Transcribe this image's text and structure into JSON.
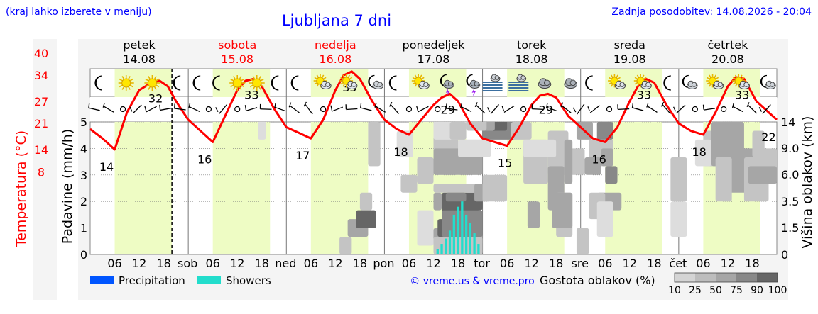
{
  "header": {
    "location_hint": "(kraj lahko izberete v meniju)",
    "title": "Ljubljana 7 dni",
    "last_update": "Zadnja posodobitev: 14.08.2026 - 20:04"
  },
  "days": [
    {
      "name": "petek",
      "date": "14.08",
      "weekend": false,
      "abbr": ""
    },
    {
      "name": "sobota",
      "date": "15.08",
      "weekend": true,
      "abbr": "sob"
    },
    {
      "name": "nedelja",
      "date": "16.08",
      "weekend": true,
      "abbr": "ned"
    },
    {
      "name": "ponedeljek",
      "date": "17.08",
      "weekend": false,
      "abbr": "pon"
    },
    {
      "name": "torek",
      "date": "18.08",
      "weekend": false,
      "abbr": "tor"
    },
    {
      "name": "sreda",
      "date": "19.08",
      "weekend": false,
      "abbr": "sre"
    },
    {
      "name": "četrtek",
      "date": "20.08",
      "weekend": false,
      "abbr": "čet"
    }
  ],
  "weather_icons": [
    [
      "moon",
      "sun",
      "sun",
      "moon"
    ],
    [
      "moon",
      "moon",
      "sun",
      "sun",
      "moon"
    ],
    [
      "moon",
      "sun-cloud",
      "sun-cloud",
      "moon-cloud"
    ],
    [
      "moon",
      "sun-cloud",
      "thunder",
      "thunder"
    ],
    [
      "fog",
      "fog",
      "cloud",
      "cloud"
    ],
    [
      "moon",
      "sun-cloud",
      "sun-cloud",
      "moon"
    ],
    [
      "moon-cloud",
      "sun-cloud",
      "sun-cloud",
      "moon-cloud"
    ]
  ],
  "icon_names": {
    "moon": "moon-icon",
    "sun": "sun-icon",
    "sun-cloud": "sun-cloud-icon",
    "moon-cloud": "moon-cloud-icon",
    "thunder": "thunderstorm-icon",
    "fog": "fog-icon",
    "cloud": "cloud-icon"
  },
  "chart_data": {
    "type": "line",
    "x_start": "14.08 00:00",
    "hour_ticks": [
      "06",
      "12",
      "18"
    ],
    "temperature": {
      "label": "Temperatura (°C)",
      "ticks": [
        8,
        14,
        21,
        27,
        34,
        40
      ],
      "color": "#ff0000",
      "points": [
        [
          0,
          19.5
        ],
        [
          3,
          17
        ],
        [
          6,
          14
        ],
        [
          9,
          24
        ],
        [
          12,
          30
        ],
        [
          15,
          32
        ],
        [
          17,
          32.5
        ],
        [
          19,
          31
        ],
        [
          21,
          27
        ],
        [
          24,
          22
        ],
        [
          27,
          19
        ],
        [
          30,
          16
        ],
        [
          33,
          23
        ],
        [
          36,
          30
        ],
        [
          38,
          32.5
        ],
        [
          40,
          33
        ],
        [
          42,
          31
        ],
        [
          45,
          25
        ],
        [
          48,
          20
        ],
        [
          51,
          18.5
        ],
        [
          54,
          17
        ],
        [
          57,
          22
        ],
        [
          60,
          30
        ],
        [
          62,
          34
        ],
        [
          64,
          35
        ],
        [
          66,
          33
        ],
        [
          69,
          27
        ],
        [
          72,
          22
        ],
        [
          75,
          19.5
        ],
        [
          78,
          18
        ],
        [
          81,
          22
        ],
        [
          84,
          26
        ],
        [
          86,
          28
        ],
        [
          88,
          29
        ],
        [
          90,
          27
        ],
        [
          93,
          21
        ],
        [
          96,
          17
        ],
        [
          99,
          16
        ],
        [
          102,
          15
        ],
        [
          105,
          20
        ],
        [
          108,
          26
        ],
        [
          110,
          28.5
        ],
        [
          112,
          29
        ],
        [
          114,
          28
        ],
        [
          117,
          23
        ],
        [
          120,
          20
        ],
        [
          123,
          17
        ],
        [
          126,
          16
        ],
        [
          129,
          20
        ],
        [
          132,
          27
        ],
        [
          134,
          31
        ],
        [
          136,
          33
        ],
        [
          138,
          32
        ],
        [
          141,
          26
        ],
        [
          144,
          21
        ],
        [
          147,
          19
        ],
        [
          150,
          18
        ],
        [
          153,
          24
        ],
        [
          156,
          31
        ],
        [
          158,
          33.5
        ],
        [
          160,
          33
        ],
        [
          163,
          27
        ],
        [
          166,
          24
        ],
        [
          168,
          22
        ]
      ],
      "labels": [
        {
          "h": 4,
          "v": 14,
          "text": "14"
        },
        {
          "h": 16,
          "v": 32,
          "text": "32"
        },
        {
          "h": 28,
          "v": 16,
          "text": "16"
        },
        {
          "h": 39.5,
          "v": 33,
          "text": "33"
        },
        {
          "h": 52,
          "v": 17,
          "text": "17"
        },
        {
          "h": 63.5,
          "v": 35,
          "text": "35"
        },
        {
          "h": 76,
          "v": 18,
          "text": "18"
        },
        {
          "h": 87.5,
          "v": 29,
          "text": "29"
        },
        {
          "h": 101.5,
          "v": 15,
          "text": "15"
        },
        {
          "h": 111.5,
          "v": 29,
          "text": "29"
        },
        {
          "h": 124.5,
          "v": 16,
          "text": "16"
        },
        {
          "h": 135.5,
          "v": 33,
          "text": "33"
        },
        {
          "h": 149,
          "v": 18,
          "text": "18"
        },
        {
          "h": 159.5,
          "v": 33,
          "text": "33"
        },
        {
          "h": 166,
          "v": 22,
          "text": "22"
        }
      ]
    },
    "precipitation": {
      "label": "Padavine (mm/h)",
      "ticks": [
        0,
        1,
        2,
        3,
        4,
        5
      ],
      "ylim": [
        0,
        5
      ],
      "showers": [
        [
          85,
          0.2
        ],
        [
          86,
          0.4
        ],
        [
          87,
          0.6
        ],
        [
          88,
          0.9
        ],
        [
          89,
          1.5
        ],
        [
          90,
          1.8
        ],
        [
          91,
          2.0
        ],
        [
          92,
          1.5
        ],
        [
          93,
          1.2
        ],
        [
          94,
          0.8
        ],
        [
          95,
          0.4
        ]
      ]
    },
    "cloud_height": {
      "label": "Višina oblakov (km)",
      "ticks": [
        "0",
        "1.5",
        "3.5",
        "6.0",
        "9.0",
        "14"
      ]
    },
    "cloud_cells": [
      [
        63,
        68,
        2,
        3,
        50
      ],
      [
        65,
        70,
        3,
        4,
        90
      ],
      [
        61,
        64,
        0,
        1,
        25
      ],
      [
        84,
        96,
        1,
        2,
        50
      ],
      [
        85,
        95,
        2,
        3,
        90
      ],
      [
        84,
        96,
        0,
        1,
        25
      ],
      [
        86,
        95,
        3,
        5,
        90
      ],
      [
        86,
        96,
        2,
        4,
        75
      ],
      [
        84,
        86,
        5,
        6,
        50
      ],
      [
        86,
        96,
        5,
        6,
        90
      ],
      [
        84,
        96,
        7,
        7,
        25
      ],
      [
        87,
        92,
        6,
        6,
        75
      ],
      [
        94,
        98,
        6,
        7,
        50
      ],
      [
        76,
        80,
        7,
        8,
        25
      ],
      [
        80,
        84,
        8,
        10,
        25
      ],
      [
        84,
        90,
        9,
        13,
        25
      ],
      [
        90,
        96,
        9,
        12,
        25
      ],
      [
        80,
        84,
        1,
        4,
        10
      ],
      [
        84,
        96,
        9,
        11,
        50
      ],
      [
        96,
        102,
        6,
        8,
        25
      ],
      [
        106,
        112,
        8,
        12,
        25
      ],
      [
        112,
        117,
        9,
        13,
        25
      ],
      [
        117,
        121,
        9,
        11,
        25
      ],
      [
        112,
        116,
        5,
        9,
        50
      ],
      [
        122,
        128,
        10,
        12,
        25
      ],
      [
        124,
        130,
        5,
        6,
        50
      ],
      [
        119,
        123,
        13,
        14,
        50
      ],
      [
        124,
        128,
        13,
        14,
        75
      ],
      [
        119,
        122,
        0,
        2,
        25
      ],
      [
        142,
        146,
        2,
        5,
        10
      ],
      [
        142,
        146,
        6,
        10,
        25
      ],
      [
        150,
        154,
        10,
        13,
        25
      ],
      [
        152,
        160,
        10,
        14,
        50
      ],
      [
        156,
        163,
        7,
        11,
        50
      ],
      [
        160,
        166,
        6,
        10,
        25
      ],
      [
        163,
        168,
        9,
        11,
        25
      ],
      [
        161,
        168,
        8,
        9,
        50
      ],
      [
        84,
        92,
        13,
        15,
        10
      ],
      [
        96,
        104,
        13,
        15,
        75
      ],
      [
        98,
        102,
        14,
        15,
        90
      ],
      [
        93,
        99,
        14,
        15,
        50
      ],
      [
        92,
        97,
        14,
        15,
        25
      ],
      [
        90,
        98,
        11,
        12,
        10
      ],
      [
        103,
        108,
        13,
        14,
        25
      ],
      [
        106,
        114,
        11,
        12,
        10
      ],
      [
        122,
        126,
        4,
        6,
        25
      ],
      [
        148,
        152,
        10,
        12,
        10
      ],
      [
        153,
        157,
        6,
        10,
        25
      ],
      [
        162,
        165,
        11,
        13,
        25
      ],
      [
        41,
        43,
        13,
        15,
        10
      ],
      [
        66,
        69,
        5,
        6,
        25
      ],
      [
        88,
        92,
        13,
        14,
        25
      ],
      [
        75,
        79,
        11,
        13,
        10
      ],
      [
        114,
        118,
        2,
        6,
        25
      ],
      [
        124,
        128,
        2,
        5,
        10
      ],
      [
        68,
        71,
        10,
        14,
        25
      ],
      [
        107,
        110,
        3,
        5,
        50
      ],
      [
        113,
        118,
        3,
        6,
        50
      ],
      [
        116,
        118,
        8,
        12,
        50
      ],
      [
        121,
        125,
        9,
        10,
        50
      ],
      [
        125,
        128,
        10,
        11,
        50
      ],
      [
        126,
        129,
        8,
        9,
        75
      ]
    ],
    "legend": {
      "precipitation": "Precipitation",
      "showers": "Showers",
      "precip_color": "#0055ff",
      "shower_color": "#22ddcc",
      "cloud_density_label": "Gostota oblakov (%)",
      "cloud_density_ticks": [
        "10",
        "25",
        "50",
        "75",
        "90",
        "100"
      ]
    },
    "credit": "© vreme.us & vreme.pro"
  }
}
